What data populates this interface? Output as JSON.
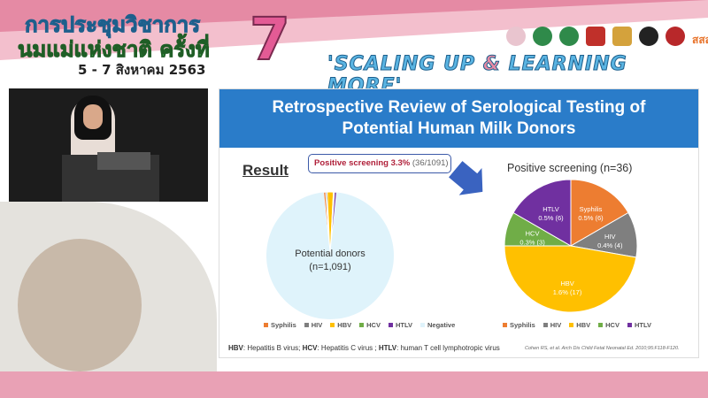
{
  "banner": {
    "title_line1": "การประชุมวิชาการ",
    "title_line2": "นมแม่แห่งชาติ ครั้งที่",
    "number": "7",
    "dates": "5 - 7 สิงหาคม 2563",
    "slogan_part1": "'SCALING UP ",
    "slogan_amp": "&",
    "slogan_part2": " LEARNING MORE'",
    "logos": [
      "logo-1",
      "logo-2",
      "logo-3",
      "logo-4",
      "logo-5",
      "logo-6",
      "logo-7",
      "logo-sss"
    ],
    "logo_text": "สสส"
  },
  "slide": {
    "title_line1": "Retrospective Review of Serological Testing of",
    "title_line2": "Potential Human Milk Donors",
    "result_label": "Result",
    "callout_bold": "Positive screening 3.3%",
    "callout_rest": " (36/1091)",
    "left_pie_label1": "Potential donors",
    "left_pie_label2": "(n=1,091)",
    "right_title": "Positive screening (n=36)",
    "footnote": [
      {
        "b": "HBV",
        "t": ": Hepatitis B virus; "
      },
      {
        "b": "HCV",
        "t": ": Hepatitis C virus ; "
      },
      {
        "b": "HTLV",
        "t": ": human T cell lymphotropic virus"
      }
    ],
    "citation": "Cohen RS, et al. Arch Dis Child Fetal Neonatal Ed. 2010;95:F118-F120."
  },
  "chart_data": [
    {
      "type": "pie",
      "title": "",
      "categories": [
        "Syphilis",
        "HIV",
        "HBV",
        "HCV",
        "HTLV",
        "Negative"
      ],
      "values": [
        6,
        4,
        17,
        3,
        6,
        1055
      ],
      "colors": [
        "#ed7d31",
        "#7f7f7f",
        "#ffc000",
        "#70ad47",
        "#7030a0",
        "#dff3fb"
      ],
      "labels": [
        "Potential donors",
        "(n=1,091)"
      ],
      "legend": "bottom"
    },
    {
      "type": "pie",
      "title": "Positive screening (n=36)",
      "categories": [
        "Syphilis",
        "HIV",
        "HBV",
        "HCV",
        "HTLV"
      ],
      "values": [
        6,
        4,
        17,
        3,
        6
      ],
      "data_labels": [
        "0.5% (6)",
        "0.4% (4)",
        "1.6% (17)",
        "0.3% (3)",
        "0.5% (6)"
      ],
      "colors": [
        "#ed7d31",
        "#7f7f7f",
        "#ffc000",
        "#70ad47",
        "#7030a0"
      ],
      "legend": "bottom"
    }
  ]
}
